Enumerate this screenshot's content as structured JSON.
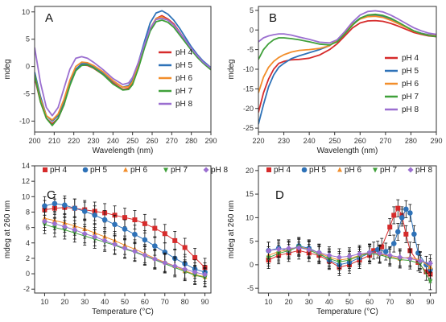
{
  "colors": {
    "pH 4": "#d62b2b",
    "pH 5": "#2e72b8",
    "pH 6": "#f28e2b",
    "pH 7": "#3fa03a",
    "pH 8": "#9b6fd0"
  },
  "chart_data": [
    {
      "panel": "A",
      "type": "line",
      "xlabel": "Wavelength (nm)",
      "ylabel": "mdeg",
      "xlim": [
        200,
        290
      ],
      "ylim": [
        -12,
        11
      ],
      "xticks": [
        200,
        210,
        220,
        230,
        240,
        250,
        260,
        270,
        280,
        290
      ],
      "yticks": [
        -10,
        -5,
        0,
        5,
        10
      ],
      "grid": false,
      "legend": "center-right",
      "series": [
        {
          "name": "pH 4",
          "x": [
            200,
            203,
            206,
            209,
            212,
            215,
            218,
            221,
            224,
            227,
            230,
            235,
            240,
            245,
            248,
            250,
            253,
            256,
            259,
            262,
            265,
            268,
            271,
            274,
            277,
            280,
            283,
            286,
            290
          ],
          "y": [
            -2,
            -6.5,
            -9.5,
            -10.5,
            -9.5,
            -7,
            -3,
            -0.5,
            0.3,
            0.2,
            -0.3,
            -1.5,
            -3,
            -4.2,
            -4,
            -3,
            0,
            3.5,
            6.8,
            8.8,
            9.3,
            8.7,
            7.8,
            6.3,
            4.8,
            3.3,
            1.9,
            0.8,
            -0.4
          ]
        },
        {
          "name": "pH 5",
          "x": [
            200,
            203,
            206,
            209,
            212,
            215,
            218,
            221,
            224,
            227,
            230,
            235,
            240,
            245,
            248,
            250,
            253,
            256,
            259,
            262,
            265,
            268,
            271,
            274,
            277,
            280,
            283,
            286,
            290
          ],
          "y": [
            -1,
            -5.5,
            -9,
            -10,
            -9,
            -6.5,
            -3,
            -0.5,
            0.5,
            0.5,
            0,
            -1.2,
            -2.7,
            -3.8,
            -3.5,
            -2.5,
            0.8,
            4.5,
            8,
            9.8,
            10.2,
            9.6,
            8.5,
            7,
            5.3,
            3.6,
            2.2,
            1,
            -0.2
          ]
        },
        {
          "name": "pH 6",
          "x": [
            200,
            203,
            206,
            209,
            212,
            215,
            218,
            221,
            224,
            227,
            230,
            235,
            240,
            245,
            248,
            250,
            253,
            256,
            259,
            262,
            265,
            268,
            271,
            274,
            277,
            280,
            283,
            286,
            290
          ],
          "y": [
            -1.5,
            -6,
            -9,
            -9.8,
            -8.7,
            -6,
            -2.5,
            0,
            0.8,
            0.7,
            0.2,
            -1,
            -2.6,
            -3.8,
            -3.7,
            -2.8,
            0.2,
            3.7,
            7,
            8.8,
            9.1,
            8.5,
            7.6,
            6.1,
            4.6,
            3.1,
            1.8,
            0.7,
            -0.5
          ]
        },
        {
          "name": "pH 7",
          "x": [
            200,
            203,
            206,
            209,
            212,
            215,
            218,
            221,
            224,
            227,
            230,
            235,
            240,
            245,
            248,
            250,
            253,
            256,
            259,
            262,
            265,
            268,
            271,
            274,
            277,
            280,
            283,
            286,
            290
          ],
          "y": [
            -1.5,
            -6.5,
            -9.5,
            -10.8,
            -9.5,
            -7,
            -3.5,
            -0.8,
            0.2,
            0.3,
            -0.2,
            -1.5,
            -3.2,
            -4.3,
            -4.2,
            -3.3,
            -0.3,
            3.3,
            6.5,
            8.2,
            8.5,
            8.1,
            7.2,
            5.8,
            4.4,
            3,
            1.7,
            0.6,
            -0.6
          ]
        },
        {
          "name": "pH 8",
          "x": [
            200,
            203,
            206,
            209,
            212,
            215,
            218,
            221,
            224,
            227,
            230,
            235,
            240,
            245,
            248,
            250,
            253,
            256,
            259,
            262,
            265,
            268,
            271,
            274,
            277,
            280,
            283,
            286,
            290
          ],
          "y": [
            3.5,
            -3,
            -7.5,
            -9,
            -7.5,
            -4,
            -0.5,
            1.5,
            1.8,
            1.5,
            0.8,
            -0.6,
            -2.2,
            -3.3,
            -3,
            -2,
            0.8,
            4,
            7,
            8.6,
            8.8,
            8.5,
            7.6,
            6.2,
            4.8,
            3.3,
            2,
            0.8,
            -0.3
          ]
        }
      ]
    },
    {
      "panel": "B",
      "type": "line",
      "xlabel": "Wavelength (nm)",
      "ylabel": "mdeg",
      "xlim": [
        220,
        290
      ],
      "ylim": [
        -26,
        6
      ],
      "xticks": [
        220,
        230,
        240,
        250,
        260,
        270,
        280,
        290
      ],
      "yticks": [
        -25,
        -20,
        -15,
        -10,
        -5,
        0,
        5
      ],
      "grid": false,
      "legend": "center-right",
      "series": [
        {
          "name": "pH 4",
          "x": [
            220,
            222,
            224,
            226,
            228,
            230,
            233,
            236,
            240,
            244,
            248,
            251,
            254,
            257,
            260,
            263,
            266,
            269,
            272,
            275,
            278,
            281,
            284,
            287,
            290
          ],
          "y": [
            -21,
            -16,
            -12.5,
            -10,
            -8.5,
            -8,
            -7.6,
            -7.5,
            -7.2,
            -6.4,
            -5,
            -3.5,
            -1.5,
            0.5,
            1.8,
            2.3,
            2.4,
            2.2,
            1.7,
            1,
            0.2,
            -0.6,
            -1.1,
            -1.5,
            -1.7
          ]
        },
        {
          "name": "pH 5",
          "x": [
            220,
            222,
            224,
            226,
            228,
            230,
            233,
            236,
            240,
            244,
            248,
            251,
            254,
            257,
            260,
            263,
            266,
            269,
            272,
            275,
            278,
            281,
            284,
            287,
            290
          ],
          "y": [
            -24,
            -19,
            -14.5,
            -11.5,
            -9.5,
            -8.5,
            -7.3,
            -6.6,
            -5.8,
            -5,
            -4,
            -2.5,
            -0.5,
            1.5,
            3,
            3.6,
            3.7,
            3.4,
            2.7,
            1.8,
            0.8,
            -0.2,
            -0.8,
            -1.2,
            -1.4
          ]
        },
        {
          "name": "pH 6",
          "x": [
            220,
            222,
            224,
            226,
            228,
            230,
            233,
            236,
            240,
            244,
            248,
            251,
            254,
            257,
            260,
            263,
            266,
            269,
            272,
            275,
            278,
            281,
            284,
            287,
            290
          ],
          "y": [
            -16,
            -12,
            -9.5,
            -8,
            -7,
            -6.3,
            -5.6,
            -5.2,
            -5,
            -4.7,
            -4,
            -2.6,
            -0.6,
            1.4,
            2.8,
            3.4,
            3.5,
            3.2,
            2.5,
            1.6,
            0.7,
            -0.3,
            -0.9,
            -1.3,
            -1.5
          ]
        },
        {
          "name": "pH 7",
          "x": [
            220,
            222,
            224,
            226,
            228,
            230,
            233,
            236,
            240,
            244,
            248,
            251,
            254,
            257,
            260,
            263,
            266,
            269,
            272,
            275,
            278,
            281,
            284,
            287,
            290
          ],
          "y": [
            -7.5,
            -5,
            -3.5,
            -2.5,
            -2,
            -2,
            -2.2,
            -2.5,
            -3,
            -3.6,
            -3.8,
            -3,
            -1,
            1.2,
            3,
            3.8,
            4,
            3.7,
            3,
            2,
            0.9,
            -0.2,
            -0.9,
            -1.4,
            -1.7
          ]
        },
        {
          "name": "pH 8",
          "x": [
            220,
            222,
            224,
            226,
            228,
            230,
            233,
            236,
            240,
            244,
            248,
            251,
            254,
            257,
            260,
            263,
            266,
            269,
            272,
            275,
            278,
            281,
            284,
            287,
            290
          ],
          "y": [
            -3,
            -2,
            -1.5,
            -1.2,
            -1,
            -1,
            -1.3,
            -1.8,
            -2.4,
            -3.1,
            -3.3,
            -2.5,
            -0.4,
            2,
            3.8,
            4.7,
            4.9,
            4.6,
            3.8,
            2.8,
            1.7,
            0.6,
            -0.2,
            -0.8,
            -1.1
          ]
        }
      ]
    },
    {
      "panel": "C",
      "type": "scatter",
      "xlabel": "Temperature (°C)",
      "ylabel": "mdeg at 260 nm",
      "xlim": [
        5,
        93
      ],
      "ylim": [
        -2.5,
        14
      ],
      "xticks": [
        10,
        20,
        30,
        40,
        50,
        60,
        70,
        80,
        90
      ],
      "yticks": [
        -2,
        0,
        2,
        4,
        6,
        8,
        10,
        12,
        14
      ],
      "grid": false,
      "legend": "top",
      "error_bars": true,
      "error": 1.2,
      "series": [
        {
          "name": "pH 4",
          "marker": "square",
          "x": [
            10,
            15,
            20,
            25,
            30,
            35,
            40,
            45,
            50,
            55,
            60,
            65,
            70,
            75,
            80,
            85,
            90
          ],
          "y": [
            8.3,
            8.5,
            8.6,
            8.5,
            8.3,
            8.1,
            7.9,
            7.6,
            7.3,
            7,
            6.5,
            5.9,
            5.2,
            4.3,
            3.4,
            2.1,
            0.8
          ]
        },
        {
          "name": "pH 5",
          "marker": "circle",
          "x": [
            10,
            15,
            20,
            25,
            30,
            35,
            40,
            45,
            50,
            55,
            60,
            65,
            70,
            75,
            80,
            85,
            90
          ],
          "y": [
            8.8,
            9.1,
            8.9,
            8.5,
            8.1,
            7.6,
            7,
            6.4,
            5.8,
            5.1,
            4.4,
            3.6,
            2.8,
            2,
            1.3,
            0.6,
            0.2
          ]
        },
        {
          "name": "pH 6",
          "marker": "triangle-up",
          "x": [
            10,
            15,
            20,
            25,
            30,
            35,
            40,
            45,
            50,
            55,
            60,
            65,
            70,
            75,
            80,
            85,
            90
          ],
          "y": [
            7.2,
            6.9,
            6.6,
            6.2,
            5.8,
            5.3,
            4.8,
            4.3,
            3.7,
            3.2,
            2.6,
            2,
            1.5,
            1,
            0.4,
            -0.1,
            -0.4
          ]
        },
        {
          "name": "pH 7",
          "marker": "triangle-down",
          "x": [
            10,
            15,
            20,
            25,
            30,
            35,
            40,
            45,
            50,
            55,
            60,
            65,
            70,
            75,
            80,
            85,
            90
          ],
          "y": [
            6.4,
            6,
            5.7,
            5.3,
            4.9,
            4.5,
            4.1,
            3.7,
            3.2,
            2.8,
            2.3,
            1.8,
            1.3,
            0.8,
            0.3,
            -0.2,
            -0.5
          ]
        },
        {
          "name": "pH 8",
          "marker": "diamond",
          "x": [
            10,
            15,
            20,
            25,
            30,
            35,
            40,
            45,
            50,
            55,
            60,
            65,
            70,
            75,
            80,
            85,
            90
          ],
          "y": [
            6.8,
            6.5,
            6.1,
            5.7,
            5.2,
            4.8,
            4.3,
            3.8,
            3.3,
            2.9,
            2.4,
            1.9,
            1.4,
            1,
            0.6,
            0.2,
            -0.1
          ]
        }
      ]
    },
    {
      "panel": "D",
      "type": "scatter",
      "xlabel": "Temperature (°C)",
      "ylabel": "mdeg at 260 nm",
      "xlim": [
        5,
        93
      ],
      "ylim": [
        -6,
        21
      ],
      "xticks": [
        10,
        20,
        30,
        40,
        50,
        60,
        70,
        80,
        90
      ],
      "yticks": [
        -5,
        0,
        5,
        10,
        15,
        20
      ],
      "grid": false,
      "legend": "top",
      "error_bars": true,
      "error": 1.8,
      "series": [
        {
          "name": "pH 4",
          "marker": "square",
          "x": [
            10,
            15,
            20,
            25,
            30,
            35,
            40,
            45,
            50,
            55,
            60,
            62,
            66,
            70,
            72,
            74,
            76,
            78,
            80,
            84,
            88,
            90
          ],
          "y": [
            1,
            2,
            2.5,
            3,
            2.5,
            2,
            0.8,
            -0.5,
            0,
            1,
            2,
            3,
            3.8,
            8,
            10.5,
            12,
            10.5,
            6.5,
            3,
            0.5,
            -1.5,
            -2
          ]
        },
        {
          "name": "pH 5",
          "marker": "circle",
          "x": [
            10,
            15,
            20,
            25,
            30,
            35,
            40,
            45,
            50,
            55,
            60,
            64,
            68,
            72,
            74,
            76,
            78,
            80,
            82,
            84,
            88,
            90
          ],
          "y": [
            3,
            3.5,
            3,
            4,
            3.5,
            2.5,
            1,
            0,
            0.5,
            1.5,
            2.5,
            3.2,
            2.8,
            4.5,
            7,
            10,
            11.8,
            11,
            6.5,
            2.5,
            0,
            -1
          ]
        },
        {
          "name": "pH 6",
          "marker": "triangle-up",
          "x": [
            10,
            15,
            20,
            25,
            30,
            35,
            40,
            45,
            50,
            55,
            60,
            65,
            70,
            75,
            80,
            85,
            90
          ],
          "y": [
            2,
            2.8,
            3.2,
            3.8,
            3.3,
            2.5,
            1.6,
            1,
            1.3,
            2,
            2.6,
            2.3,
            1.8,
            1.3,
            1.6,
            1,
            -0.5
          ]
        },
        {
          "name": "pH 7",
          "marker": "triangle-down",
          "x": [
            10,
            15,
            20,
            25,
            30,
            35,
            40,
            45,
            50,
            55,
            60,
            65,
            70,
            75,
            80,
            85,
            90
          ],
          "y": [
            1.5,
            2.4,
            3,
            3.8,
            3.1,
            2.2,
            1.3,
            0.6,
            1,
            1.9,
            2.4,
            2.1,
            1.5,
            1.1,
            0.9,
            0.2,
            -3.5
          ]
        },
        {
          "name": "pH 8",
          "marker": "diamond",
          "x": [
            10,
            15,
            20,
            25,
            30,
            35,
            40,
            45,
            50,
            55,
            60,
            65,
            70,
            75,
            80,
            85,
            90
          ],
          "y": [
            3,
            3.3,
            3.5,
            3.6,
            3.2,
            2.6,
            2,
            1.6,
            1.8,
            2.3,
            2.6,
            2.4,
            2,
            1.6,
            1.3,
            0.8,
            0.3
          ]
        }
      ]
    }
  ]
}
